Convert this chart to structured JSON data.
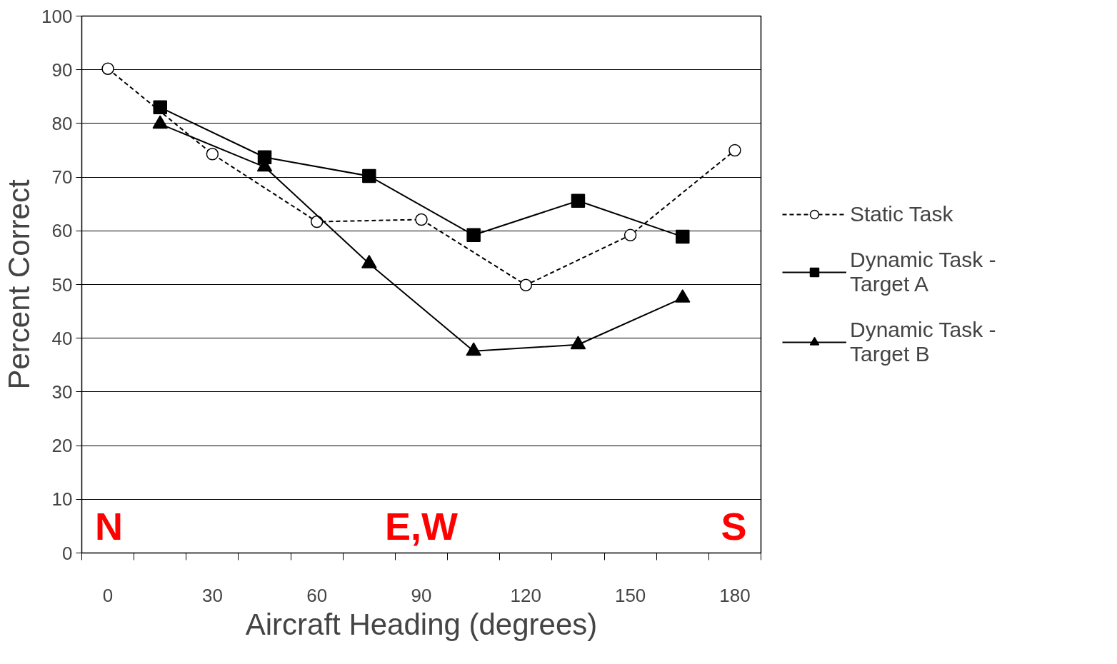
{
  "chart_data": {
    "type": "line",
    "xlabel": "Aircraft Heading (degrees)",
    "ylabel": "Percent Correct",
    "xlim": [
      -7.5,
      187.5
    ],
    "xticks": [
      0,
      30,
      60,
      90,
      120,
      150,
      180,
      {
        "value": -7.5,
        "label": null
      },
      {
        "value": 7.5,
        "label": null
      },
      {
        "value": 22.5,
        "label": null
      },
      {
        "value": 37.5,
        "label": null
      },
      {
        "value": 52.5,
        "label": null
      },
      {
        "value": 67.5,
        "label": null
      },
      {
        "value": 82.5,
        "label": null
      },
      {
        "value": 97.5,
        "label": null
      },
      {
        "value": 112.5,
        "label": null
      },
      {
        "value": 127.5,
        "label": null
      },
      {
        "value": 142.5,
        "label": null
      },
      {
        "value": 157.5,
        "label": null
      },
      {
        "value": 172.5,
        "label": null
      },
      {
        "value": 187.5,
        "label": null
      }
    ],
    "ylim": [
      0,
      100
    ],
    "yticks": [
      0,
      10,
      20,
      30,
      40,
      50,
      60,
      70,
      80,
      90,
      100
    ],
    "grid": "y",
    "legend": "right",
    "series": [
      {
        "name": "Static Task",
        "color": "#000000",
        "marker": "circle",
        "line_style": "dashed",
        "x": [
          0,
          30,
          60,
          90,
          120,
          150,
          180
        ],
        "values": [
          90.2,
          74.3,
          61.7,
          62.1,
          49.9,
          59.2,
          75.0
        ]
      },
      {
        "name": "Dynamic Task - Target A",
        "color": "#000000",
        "marker": "square",
        "line_style": "solid",
        "x": [
          15,
          45,
          75,
          105,
          135,
          165
        ],
        "values": [
          83.0,
          73.7,
          70.2,
          59.2,
          65.6,
          58.9
        ]
      },
      {
        "name": "Dynamic Task - Target B",
        "color": "#000000",
        "marker": "triangle",
        "line_style": "solid",
        "x": [
          15,
          45,
          75,
          105,
          135,
          165
        ],
        "values": [
          79.9,
          71.9,
          53.9,
          37.6,
          38.8,
          47.5
        ]
      }
    ],
    "annotations": [
      "N",
      "E,W",
      "S"
    ]
  }
}
